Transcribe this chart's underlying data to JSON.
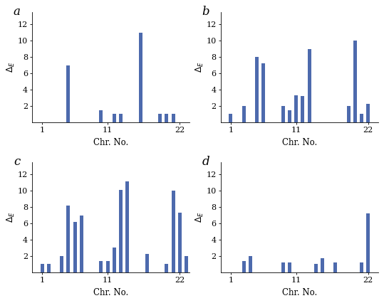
{
  "bar_color": "#4d6aad",
  "label_fontsize": 8.5,
  "tick_fontsize": 8,
  "panel_label_fontsize": 12,
  "xlabel": "Chr. No.",
  "xticks": [
    1,
    11,
    22
  ],
  "yticks": [
    2,
    4,
    6,
    8,
    10,
    12
  ],
  "ylim": [
    0,
    13.5
  ],
  "xlim": [
    -0.5,
    23.5
  ],
  "bar_width": 0.55,
  "data_a_positions": [
    5,
    10,
    12,
    13,
    16,
    19,
    20,
    21
  ],
  "data_a_heights": [
    7,
    1.5,
    1,
    1,
    11,
    1,
    1,
    1
  ],
  "data_b_positions": [
    1,
    3,
    5,
    6,
    9,
    10,
    11,
    12,
    13,
    19,
    20,
    21,
    22
  ],
  "data_b_heights": [
    1,
    2,
    8,
    7.2,
    2,
    1.5,
    3.3,
    3.2,
    9,
    2,
    10,
    1,
    2.3
  ],
  "data_c_positions": [
    1,
    2,
    4,
    5,
    6,
    7,
    10,
    11,
    12,
    13,
    14,
    17,
    20,
    21,
    22,
    23
  ],
  "data_c_heights": [
    1,
    1,
    2,
    8.2,
    6.2,
    7,
    1.4,
    1.4,
    3,
    10.1,
    11.2,
    2.3,
    1,
    10,
    7.3,
    2
  ],
  "data_d_positions": [
    3,
    4,
    9,
    10,
    14,
    15,
    17,
    21,
    22
  ],
  "data_d_heights": [
    1.4,
    2,
    1.2,
    1.2,
    1,
    1.7,
    1.2,
    1.2,
    7.2
  ]
}
